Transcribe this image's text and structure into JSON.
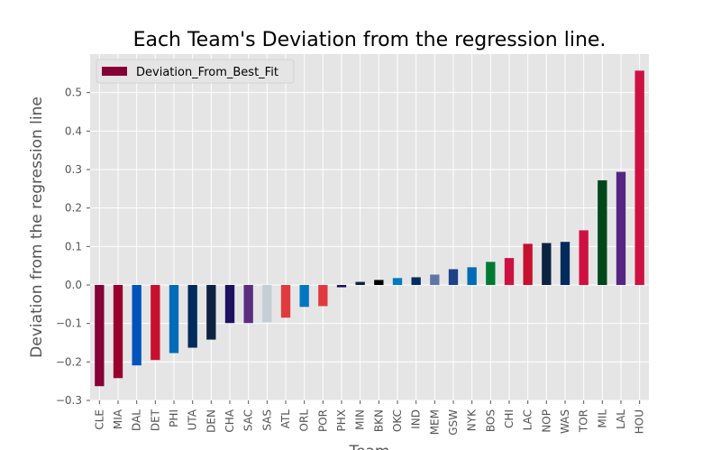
{
  "chart_data": {
    "type": "bar",
    "title": "Each Team's Deviation from the regression line.",
    "xlabel": "Team",
    "ylabel": "Deviation from the regression line",
    "ylim": [
      -0.3,
      0.6
    ],
    "yticks": [
      -0.3,
      -0.2,
      -0.1,
      0.0,
      0.1,
      0.2,
      0.3,
      0.4,
      0.5
    ],
    "ytick_labels": [
      "−0.3",
      "−0.2",
      "−0.1",
      "0.0",
      "0.1",
      "0.2",
      "0.3",
      "0.4",
      "0.5"
    ],
    "grid": true,
    "legend_position": "top-left",
    "series": [
      {
        "name": "Deviation_From_Best_Fit",
        "legend_color": "#860038",
        "values": [
          -0.263,
          -0.242,
          -0.209,
          -0.195,
          -0.177,
          -0.163,
          -0.142,
          -0.099,
          -0.099,
          -0.097,
          -0.085,
          -0.057,
          -0.055,
          -0.006,
          0.008,
          0.013,
          0.018,
          0.02,
          0.027,
          0.041,
          0.046,
          0.06,
          0.07,
          0.107,
          0.109,
          0.112,
          0.142,
          0.272,
          0.294,
          0.557
        ]
      }
    ],
    "categories": [
      "CLE",
      "MIA",
      "DAL",
      "DET",
      "PHI",
      "UTA",
      "DEN",
      "CHA",
      "SAC",
      "SAS",
      "ATL",
      "ORL",
      "POR",
      "PHX",
      "MIN",
      "BKN",
      "OKC",
      "IND",
      "MEM",
      "GSW",
      "NYK",
      "BOS",
      "CHI",
      "LAC",
      "NOP",
      "WAS",
      "TOR",
      "MIL",
      "LAL",
      "HOU"
    ],
    "colors": [
      "#860038",
      "#98002E",
      "#0053BC",
      "#C8102E",
      "#006BB6",
      "#002B5C",
      "#0E2240",
      "#1D1160",
      "#5A2D81",
      "#C4CED4",
      "#E03A3E",
      "#0077C0",
      "#E03A3E",
      "#1D1160",
      "#0C2340",
      "#000000",
      "#007AC1",
      "#002D62",
      "#5D76A9",
      "#1D428A",
      "#006BB6",
      "#007A33",
      "#CE1141",
      "#C8102E",
      "#0C2340",
      "#002B5C",
      "#CE1141",
      "#00471B",
      "#552583",
      "#CE1141"
    ]
  }
}
